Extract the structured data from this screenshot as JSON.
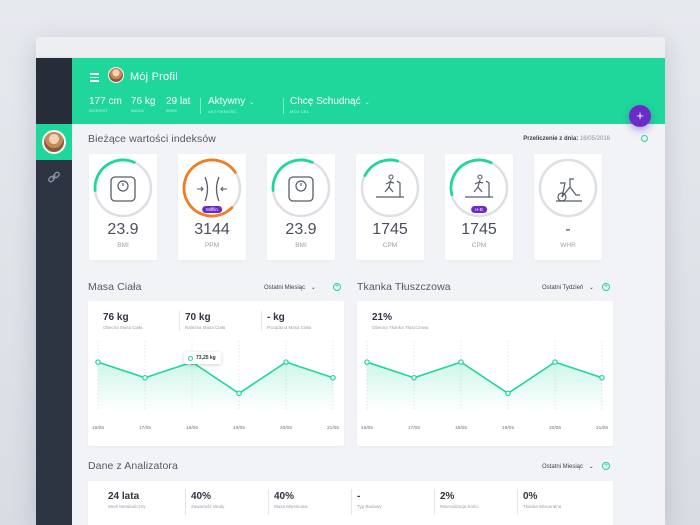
{
  "header": {
    "title": "Mój Profil",
    "stats": [
      {
        "value": "177 cm",
        "label": "WZROST"
      },
      {
        "value": "76 kg",
        "label": "WAGA"
      },
      {
        "value": "29 lat",
        "label": "WIEK"
      }
    ],
    "activity": {
      "value": "Aktywny",
      "label": "AKTYWNOŚĆ"
    },
    "goal": {
      "value": "Chcę Schudnąć",
      "label": "MÓJ CEL"
    },
    "fab_label": "+"
  },
  "indexes": {
    "title": "Bieżące wartości indeksów",
    "recalc_label": "Przeliczenie z dnia:",
    "recalc_date": "16/05/2016",
    "cards": [
      {
        "value": "23.9",
        "label": "BMI",
        "icon": "scale-icon",
        "progress": 0.33,
        "color": "#1fd79a"
      },
      {
        "value": "3144",
        "label": "PPM",
        "icon": "waist-icon",
        "progress": 0.78,
        "color": "#f47c20",
        "badge": "Mifflin"
      },
      {
        "value": "23.9",
        "label": "BMI",
        "icon": "scale-icon",
        "progress": 0.33,
        "color": "#1fd79a"
      },
      {
        "value": "1745",
        "label": "CPM",
        "icon": "treadmill-icon",
        "progress": 0.22,
        "color": "#1fd79a"
      },
      {
        "value": "1745",
        "label": "CPM",
        "icon": "treadmill-icon",
        "progress": 0.36,
        "color": "#1fd79a",
        "badge": "H-B"
      },
      {
        "value": "-",
        "label": "WHR",
        "icon": "bike-icon",
        "progress": 0,
        "color": "#1fd79a"
      }
    ]
  },
  "masa": {
    "title": "Masa Ciała",
    "filter": "Ostatni Miesiąc",
    "metrics": [
      {
        "value": "76 kg",
        "label": "Obecna Masa Ciała"
      },
      {
        "value": "70 kg",
        "label": "Należna Masa Ciała"
      },
      {
        "value": "- kg",
        "label": "Pożądana Masa Ciała"
      }
    ],
    "tooltip": "73,25 kg"
  },
  "tkanka": {
    "title": "Tkanka Tłuszczowa",
    "filter": "Ostatni Tydzień",
    "metrics": [
      {
        "value": "21%",
        "label": "Obecna Tkanka Tłuszczowa"
      }
    ]
  },
  "analizator": {
    "title": "Dane z Analizatora",
    "filter": "Ostatni Miesiąc",
    "metrics": [
      {
        "value": "24 lata",
        "label": "Wiek Metaboliczny"
      },
      {
        "value": "40%",
        "label": "Zawartość Wody"
      },
      {
        "value": "40%",
        "label": "Masa Mięśniowa"
      },
      {
        "value": "-",
        "label": "Typ Budowy"
      },
      {
        "value": "2%",
        "label": "Mineralizacja Kości"
      },
      {
        "value": "0%",
        "label": "Tkanka Wisceralna"
      }
    ]
  },
  "chart_data": [
    {
      "type": "area",
      "title": "Masa Ciała",
      "categories": [
        "16/05",
        "17/05",
        "18/05",
        "19/05",
        "20/05",
        "21/05"
      ],
      "series": [
        {
          "values": [
            3,
            2,
            3,
            1,
            3,
            2
          ]
        }
      ],
      "color": "#1fd79a"
    },
    {
      "type": "area",
      "title": "Tkanka Tłuszczowa",
      "categories": [
        "16/05",
        "17/05",
        "18/05",
        "19/05",
        "20/05",
        "21/05"
      ],
      "series": [
        {
          "values": [
            3,
            2,
            3,
            1,
            3,
            2
          ]
        }
      ],
      "color": "#1fd79a"
    }
  ]
}
